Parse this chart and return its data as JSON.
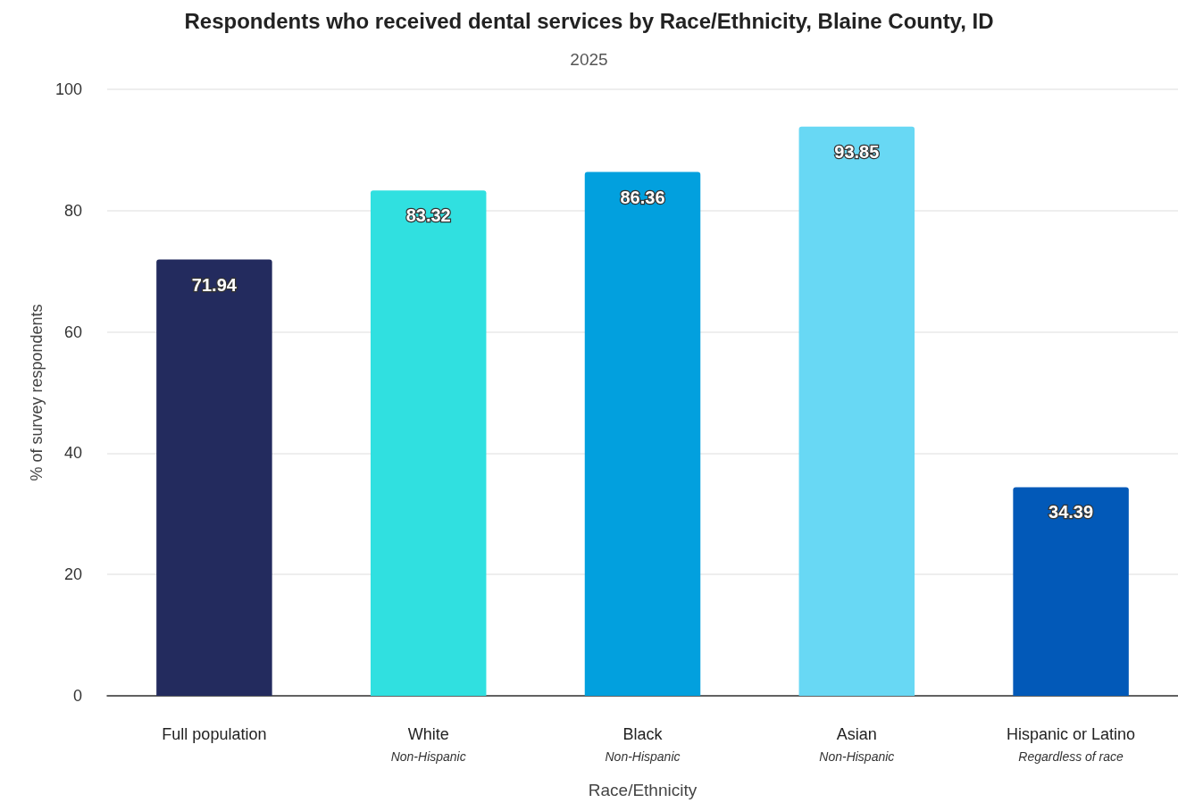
{
  "chart_data": {
    "type": "bar",
    "title": "Respondents who received dental services by Race/Ethnicity, Blaine County, ID",
    "subtitle": "2025",
    "xlabel": "Race/Ethnicity",
    "ylabel": "% of survey respondents",
    "categories": [
      "Full population",
      "White\nNon-Hispanic",
      "Black\nNon-Hispanic",
      "Asian\nNon-Hispanic",
      "Hispanic or Latino\nRegardless of race"
    ],
    "values": [
      71.94,
      83.32,
      86.36,
      93.85,
      34.39
    ],
    "colors": [
      "#232b5e",
      "#30e0e0",
      "#02a0de",
      "#68d8f4",
      "#0259b8"
    ],
    "ylim": [
      0,
      100
    ],
    "yticks": [
      0,
      20,
      40,
      60,
      80,
      100
    ],
    "grid": "y",
    "data_labels": true
  }
}
